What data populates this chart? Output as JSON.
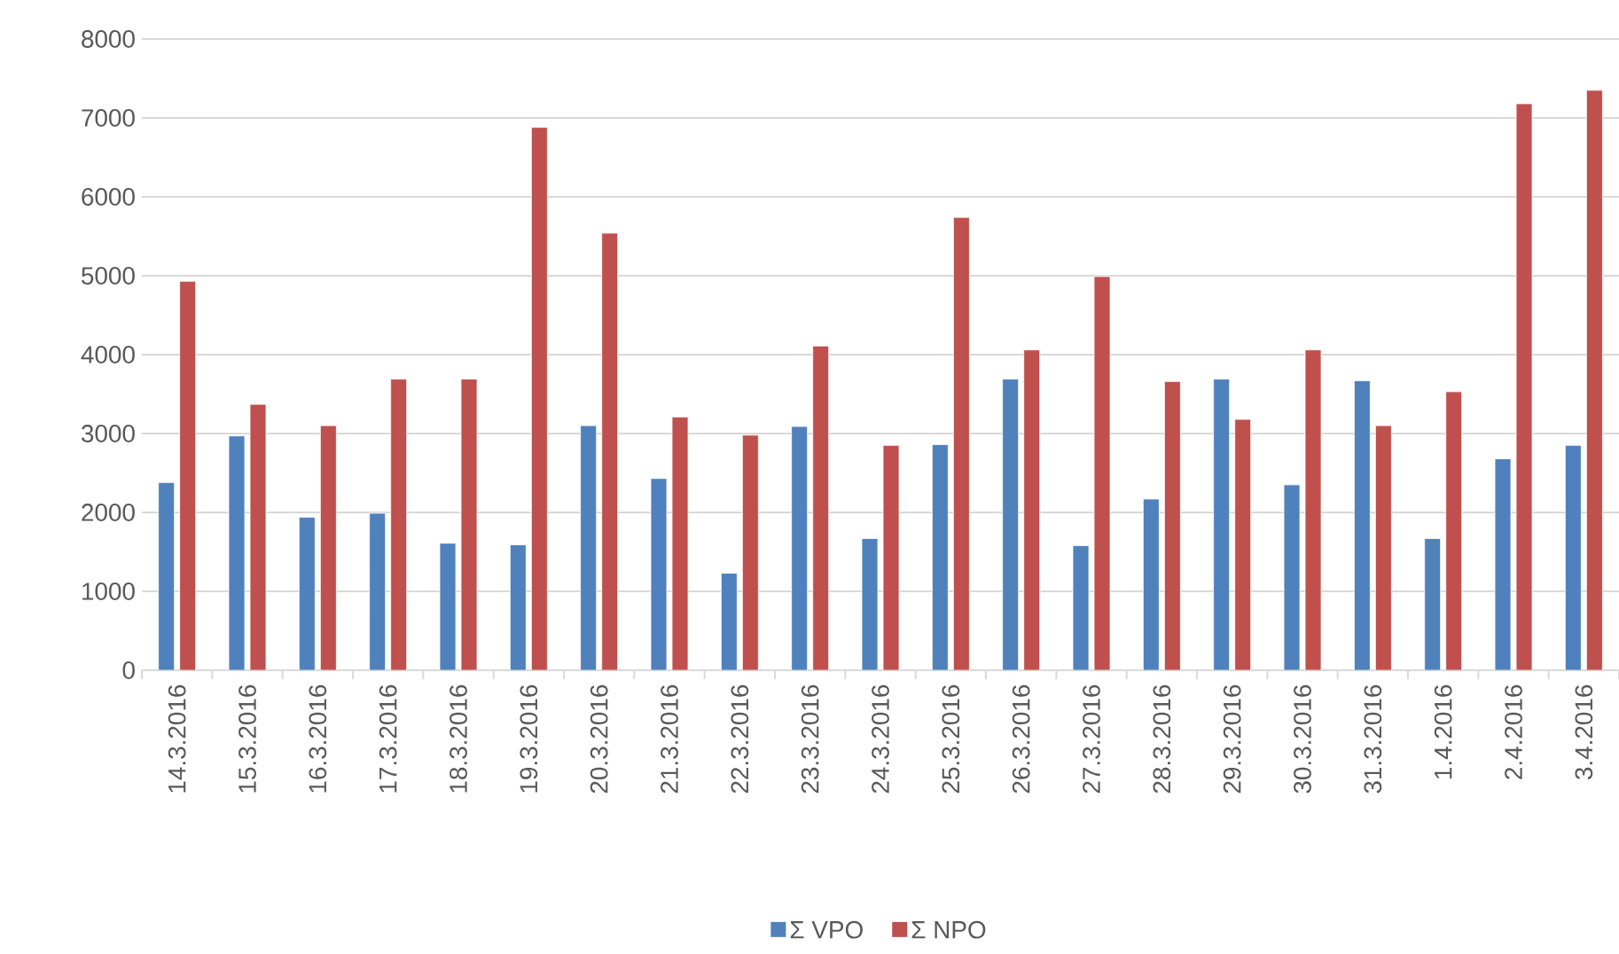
{
  "chart_data": {
    "type": "bar",
    "categories": [
      "14.3.2016",
      "15.3.2016",
      "16.3.2016",
      "17.3.2016",
      "18.3.2016",
      "19.3.2016",
      "20.3.2016",
      "21.3.2016",
      "22.3.2016",
      "23.3.2016",
      "24.3.2016",
      "25.3.2016",
      "26.3.2016",
      "27.3.2016",
      "28.3.2016",
      "29.3.2016",
      "30.3.2016",
      "31.3.2016",
      "1.4.2016",
      "2.4.2016",
      "3.4.2016"
    ],
    "series": [
      {
        "name": "Σ VPO",
        "color": "#4f81bd",
        "values": [
          2380,
          2970,
          1940,
          1990,
          1610,
          1590,
          3100,
          2430,
          1230,
          3090,
          1670,
          2860,
          3690,
          1580,
          2170,
          3690,
          2350,
          3670,
          1670,
          2680,
          2850
        ]
      },
      {
        "name": "Σ NPO",
        "color": "#c0504d",
        "values": [
          4930,
          3370,
          3100,
          3690,
          3690,
          6880,
          5540,
          3210,
          2980,
          4110,
          2850,
          5740,
          4060,
          4990,
          3660,
          3180,
          4060,
          3100,
          3530,
          7180,
          7350
        ]
      }
    ],
    "ylim": [
      0,
      8000
    ],
    "yticks": [
      0,
      1000,
      2000,
      3000,
      4000,
      5000,
      6000,
      7000,
      8000
    ],
    "grid": "y",
    "legend": "bottom"
  }
}
